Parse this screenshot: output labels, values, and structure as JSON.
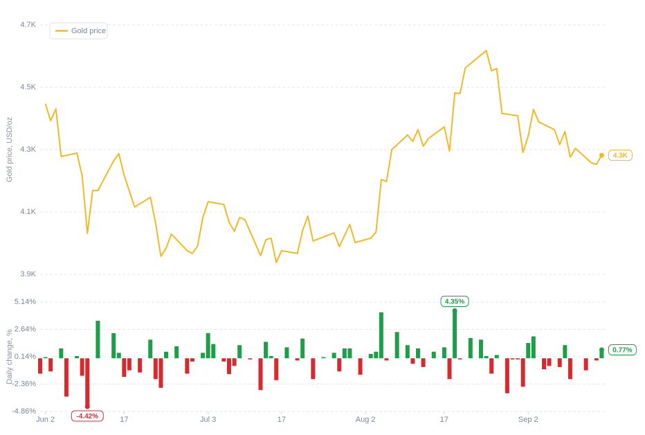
{
  "chart_data": [
    {
      "type": "line",
      "y_axis_label": "Gold price, USD/oz",
      "legend": "top-left",
      "grid": true,
      "xlim": [
        -1,
        107
      ],
      "ylim": [
        3900,
        4700
      ],
      "yticks": [
        {
          "value": 3900,
          "label": "3.9K"
        },
        {
          "value": 4100,
          "label": "4.1K"
        },
        {
          "value": 4300,
          "label": "4.3K"
        },
        {
          "value": 4500,
          "label": "4.5K"
        },
        {
          "value": 4700,
          "label": "4.7K"
        }
      ],
      "series": [
        {
          "name": "Gold price",
          "color": "#f5b823",
          "x": [
            0,
            1,
            2,
            3,
            6,
            7,
            8,
            9,
            10,
            13,
            14,
            15,
            17,
            20,
            21,
            22,
            23,
            24,
            27,
            28,
            29,
            30,
            31,
            34,
            35,
            36,
            37,
            38,
            41,
            42,
            43,
            44,
            45,
            48,
            49,
            50,
            51,
            55,
            56,
            58,
            59,
            62,
            63,
            64,
            65,
            66,
            69,
            70,
            71,
            72,
            73,
            76,
            77,
            78,
            79,
            80,
            83,
            84,
            85,
            86,
            87,
            90,
            91,
            92,
            93,
            94,
            97,
            98,
            99,
            100,
            101,
            104,
            105,
            106
          ],
          "values": [
            4447,
            4393,
            4431,
            4278,
            4289,
            4216,
            4031,
            4169,
            4169,
            4264,
            4287,
            4218,
            4116,
            4147,
            4064,
            3958,
            3984,
            4029,
            3976,
            3967,
            3991,
            4082,
            4133,
            4124,
            4067,
            4038,
            4082,
            4076,
            3960,
            4011,
            4016,
            3938,
            3976,
            3967,
            4040,
            4087,
            4007,
            4033,
            3989,
            4060,
            4002,
            4016,
            4036,
            4204,
            4198,
            4300,
            4347,
            4327,
            4364,
            4311,
            4336,
            4373,
            4296,
            4482,
            4480,
            4562,
            4604,
            4618,
            4553,
            4560,
            4416,
            4409,
            4291,
            4344,
            4429,
            4389,
            4364,
            4316,
            4358,
            4276,
            4304,
            4258,
            4253,
            4282
          ],
          "value_labels": [
            null,
            null,
            null,
            null,
            null,
            null,
            null,
            null,
            null,
            null,
            null,
            null,
            null,
            null,
            null,
            null,
            null,
            null,
            null,
            null,
            null,
            null,
            null,
            null,
            null,
            null,
            null,
            null,
            null,
            null,
            null,
            null,
            null,
            null,
            null,
            null,
            null,
            null,
            null,
            null,
            null,
            null,
            null,
            null,
            null,
            null,
            null,
            null,
            null,
            null,
            null,
            null,
            null,
            null,
            null,
            null,
            null,
            null,
            null,
            null,
            null,
            null,
            null,
            null,
            null,
            null,
            null,
            null,
            null,
            null,
            null,
            null,
            null,
            "4.3K"
          ]
        }
      ]
    },
    {
      "type": "bar",
      "y_axis_label": "Daily change, %",
      "grid": true,
      "positive_color": "#1f9e4a",
      "negative_color": "#d9292e",
      "xlim": [
        -1,
        107
      ],
      "xticks": [
        {
          "value": 0,
          "label": "Jun 2"
        },
        {
          "value": 15,
          "label": "17"
        },
        {
          "value": 31,
          "label": "Jul 3"
        },
        {
          "value": 45,
          "label": "17"
        },
        {
          "value": 61,
          "label": "Aug 2"
        },
        {
          "value": 76,
          "label": "17"
        },
        {
          "value": 92,
          "label": "Sep 2"
        }
      ],
      "ylim": [
        -4.86,
        5.14
      ],
      "yticks": [
        {
          "value": -4.86,
          "label": "-4.86%"
        },
        {
          "value": -2.36,
          "label": "-2.36%"
        },
        {
          "value": 0.14,
          "label": "0.14%"
        },
        {
          "value": 2.64,
          "label": "2.64%"
        },
        {
          "value": 5.14,
          "label": "5.14%"
        }
      ],
      "x": [
        -1,
        0,
        1,
        3,
        4,
        6,
        7,
        8,
        10,
        13,
        14,
        15,
        16,
        18,
        20,
        21,
        22,
        23,
        25,
        27,
        28,
        30,
        31,
        32,
        34,
        35,
        36,
        37,
        39,
        41,
        42,
        43,
        44,
        46,
        48,
        49,
        51,
        53,
        55,
        56,
        57,
        58,
        60,
        62,
        63,
        64,
        65,
        67,
        69,
        70,
        71,
        72,
        74,
        76,
        77,
        78,
        79,
        81,
        83,
        84,
        85,
        86,
        88,
        89,
        90,
        91,
        92,
        93,
        95,
        96,
        98,
        99,
        100,
        103,
        105,
        106
      ],
      "values": [
        -1.4,
        0.1,
        -1.2,
        0.9,
        -3.5,
        0.2,
        -1.6,
        -4.42,
        3.43,
        2.3,
        0.5,
        -1.7,
        -1.1,
        -1.3,
        1.7,
        -1.9,
        -2.7,
        0.6,
        1.1,
        -1.4,
        -0.3,
        0.5,
        2.3,
        1.3,
        -0.3,
        -1.45,
        -0.7,
        1.2,
        -0.1,
        -2.9,
        1.5,
        0.2,
        -2.0,
        1.0,
        -0.2,
        1.8,
        -1.9,
        0.1,
        0.5,
        -1.2,
        0.9,
        0.9,
        -1.5,
        0.4,
        0.6,
        4.2,
        -0.2,
        2.4,
        1.2,
        -0.5,
        0.9,
        -0.8,
        0.6,
        1.0,
        -1.9,
        4.35,
        -0.1,
        1.85,
        1.7,
        0.2,
        -1.4,
        0.3,
        -3.2,
        -0.1,
        -0.1,
        -2.6,
        1.4,
        2.0,
        -1.0,
        -0.7,
        -0.8,
        1.2,
        -1.9,
        -1.1,
        -0.2,
        0.77
      ],
      "value_labels": [
        null,
        null,
        null,
        null,
        null,
        null,
        null,
        "-4.42%",
        null,
        null,
        null,
        null,
        null,
        null,
        null,
        null,
        null,
        null,
        null,
        null,
        null,
        null,
        null,
        null,
        null,
        null,
        null,
        null,
        null,
        null,
        null,
        null,
        null,
        null,
        null,
        null,
        null,
        null,
        null,
        null,
        null,
        null,
        null,
        null,
        null,
        null,
        null,
        null,
        null,
        null,
        null,
        null,
        null,
        null,
        null,
        "4.35%",
        null,
        null,
        null,
        null,
        null,
        null,
        null,
        null,
        null,
        null,
        null,
        null,
        null,
        null,
        null,
        null,
        null,
        null,
        null,
        "0.77%"
      ]
    }
  ]
}
